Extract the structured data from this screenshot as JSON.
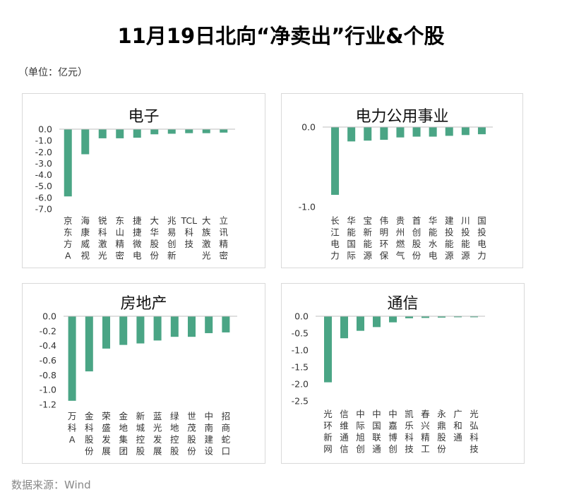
{
  "page": {
    "title": "11月19日北向“净卖出”行业&个股",
    "unit": "（单位：亿元）",
    "source": "数据来源：Wind"
  },
  "colors": {
    "bar": "#4aa585",
    "axis": "#bfbfbf"
  },
  "chart_data": [
    {
      "type": "bar",
      "title": "电子",
      "categories": [
        "京东方A",
        "海康威视",
        "锐科激光",
        "东山精密",
        "捷捷微电",
        "大华股份",
        "兆易创新",
        "TCL科技",
        "大族激光",
        "立讯精密"
      ],
      "values": [
        -5.9,
        -2.2,
        -0.8,
        -0.8,
        -0.75,
        -0.45,
        -0.4,
        -0.35,
        -0.35,
        -0.3
      ],
      "ylim": [
        -7.0,
        0.0
      ],
      "yticks": [
        "0.0",
        "-1.0",
        "-2.0",
        "-3.0",
        "-4.0",
        "-5.0",
        "-6.0",
        "-7.0"
      ]
    },
    {
      "type": "bar",
      "title": "电力公用事业",
      "categories": [
        "长江电力",
        "华能国际",
        "宝新能源",
        "伟明环保",
        "贵州燃气",
        "首创股份",
        "华能水电",
        "建投能源",
        "川投能源",
        "国投电力"
      ],
      "values": [
        -0.85,
        -0.18,
        -0.17,
        -0.16,
        -0.13,
        -0.12,
        -0.12,
        -0.11,
        -0.1,
        -0.09
      ],
      "ylim": [
        -1.0,
        0.0
      ],
      "yticks": [
        "0.0",
        "-1.0"
      ]
    },
    {
      "type": "bar",
      "title": "房地产",
      "categories": [
        "万科A",
        "金科股份",
        "荣盛发展",
        "金地集团",
        "新城控股",
        "蓝光发展",
        "绿地控股",
        "世茂股份",
        "中南建设",
        "招商蛇口"
      ],
      "values": [
        -1.15,
        -0.75,
        -0.44,
        -0.39,
        -0.37,
        -0.33,
        -0.28,
        -0.28,
        -0.23,
        -0.22
      ],
      "ylim": [
        -1.2,
        0.0
      ],
      "yticks": [
        "0.0",
        "-0.2",
        "-0.4",
        "-0.6",
        "-0.8",
        "-1.0",
        "-1.2"
      ]
    },
    {
      "type": "bar",
      "title": "通信",
      "categories": [
        "光环新网",
        "信维通信",
        "中际旭创",
        "中国联通",
        "中嘉博创",
        "凯乐科技",
        "春兴精工",
        "永鼎股份",
        "广和通",
        "光弘科技"
      ],
      "values": [
        -1.95,
        -0.65,
        -0.43,
        -0.32,
        -0.18,
        -0.06,
        -0.05,
        -0.04,
        -0.03,
        -0.03
      ],
      "ylim": [
        -2.5,
        0.0
      ],
      "yticks": [
        "0.0",
        "-0.5",
        "-1.0",
        "-1.5",
        "-2.0",
        "-2.5"
      ]
    }
  ]
}
